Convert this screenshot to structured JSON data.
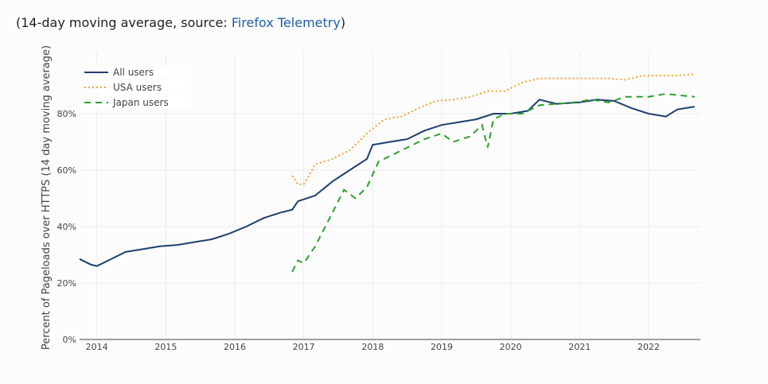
{
  "caption": {
    "prefix": "(14-day moving average, source: ",
    "link": "Firefox Telemetry",
    "suffix": ")"
  },
  "chart_data": {
    "type": "line",
    "title": "",
    "xlabel": "",
    "ylabel": "Percent of Pageloads over HTTPS (14 day moving average)",
    "xlim": [
      "2013-10",
      "2022-09"
    ],
    "ylim": [
      0,
      100
    ],
    "yticks": [
      0,
      20,
      40,
      60,
      80
    ],
    "ytick_labels": [
      "0%",
      "20%",
      "40%",
      "60%",
      "80%"
    ],
    "xtick_labels": [
      "2014",
      "2015",
      "2016",
      "2017",
      "2018",
      "2019",
      "2020",
      "2021",
      "2022"
    ],
    "grid": true,
    "legend_position": "top-left",
    "series": [
      {
        "name": "All users",
        "color": "#1f3f6e",
        "dash": "solid",
        "points": [
          [
            "2013-10",
            28.5
          ],
          [
            "2013-12",
            26.5
          ],
          [
            "2014-01",
            26
          ],
          [
            "2014-03",
            28
          ],
          [
            "2014-06",
            31
          ],
          [
            "2014-09",
            32
          ],
          [
            "2014-12",
            33
          ],
          [
            "2015-03",
            33.5
          ],
          [
            "2015-06",
            34.5
          ],
          [
            "2015-09",
            35.5
          ],
          [
            "2015-12",
            37.5
          ],
          [
            "2016-03",
            40
          ],
          [
            "2016-06",
            43
          ],
          [
            "2016-09",
            45
          ],
          [
            "2016-11",
            46
          ],
          [
            "2016-12",
            49
          ],
          [
            "2017-03",
            51
          ],
          [
            "2017-06",
            56
          ],
          [
            "2017-09",
            60
          ],
          [
            "2017-12",
            64
          ],
          [
            "2018-01",
            69
          ],
          [
            "2018-04",
            70
          ],
          [
            "2018-07",
            71
          ],
          [
            "2018-10",
            74
          ],
          [
            "2019-01",
            76
          ],
          [
            "2019-04",
            77
          ],
          [
            "2019-07",
            78
          ],
          [
            "2019-10",
            80
          ],
          [
            "2020-01",
            80
          ],
          [
            "2020-04",
            81
          ],
          [
            "2020-06",
            85
          ],
          [
            "2020-09",
            83.5
          ],
          [
            "2021-01",
            84
          ],
          [
            "2021-04",
            85
          ],
          [
            "2021-07",
            84.5
          ],
          [
            "2021-10",
            82
          ],
          [
            "2022-01",
            80
          ],
          [
            "2022-04",
            79
          ],
          [
            "2022-06",
            81.5
          ],
          [
            "2022-09",
            82.5
          ]
        ]
      },
      {
        "name": "USA users",
        "color": "#f5a031",
        "dash": "dot",
        "points": [
          [
            "2016-11",
            58
          ],
          [
            "2016-12",
            55
          ],
          [
            "2017-01",
            55
          ],
          [
            "2017-03",
            62
          ],
          [
            "2017-06",
            64
          ],
          [
            "2017-09",
            67
          ],
          [
            "2017-12",
            73
          ],
          [
            "2018-03",
            78
          ],
          [
            "2018-06",
            79
          ],
          [
            "2018-09",
            82
          ],
          [
            "2018-12",
            84.5
          ],
          [
            "2019-03",
            85
          ],
          [
            "2019-06",
            86
          ],
          [
            "2019-09",
            88
          ],
          [
            "2019-12",
            88
          ],
          [
            "2020-03",
            91
          ],
          [
            "2020-06",
            92.5
          ],
          [
            "2020-12",
            92.5
          ],
          [
            "2021-06",
            92.5
          ],
          [
            "2021-09",
            92
          ],
          [
            "2021-12",
            93.5
          ],
          [
            "2022-06",
            93.5
          ],
          [
            "2022-09",
            94
          ]
        ]
      },
      {
        "name": "Japan users",
        "color": "#2ca02c",
        "dash": "dash",
        "points": [
          [
            "2016-11",
            24
          ],
          [
            "2016-12",
            28
          ],
          [
            "2017-01",
            27
          ],
          [
            "2017-03",
            33
          ],
          [
            "2017-06",
            45
          ],
          [
            "2017-08",
            53
          ],
          [
            "2017-10",
            50
          ],
          [
            "2017-12",
            54
          ],
          [
            "2018-02",
            63
          ],
          [
            "2018-04",
            65
          ],
          [
            "2018-07",
            68
          ],
          [
            "2018-10",
            71
          ],
          [
            "2019-01",
            73
          ],
          [
            "2019-03",
            70
          ],
          [
            "2019-06",
            72
          ],
          [
            "2019-08",
            76
          ],
          [
            "2019-09",
            68
          ],
          [
            "2019-10",
            78
          ],
          [
            "2019-12",
            80
          ],
          [
            "2020-03",
            80
          ],
          [
            "2020-06",
            83
          ],
          [
            "2020-12",
            84
          ],
          [
            "2021-03",
            85
          ],
          [
            "2021-06",
            84
          ],
          [
            "2021-09",
            86
          ],
          [
            "2022-01",
            86
          ],
          [
            "2022-04",
            87
          ],
          [
            "2022-09",
            86
          ]
        ]
      }
    ]
  }
}
